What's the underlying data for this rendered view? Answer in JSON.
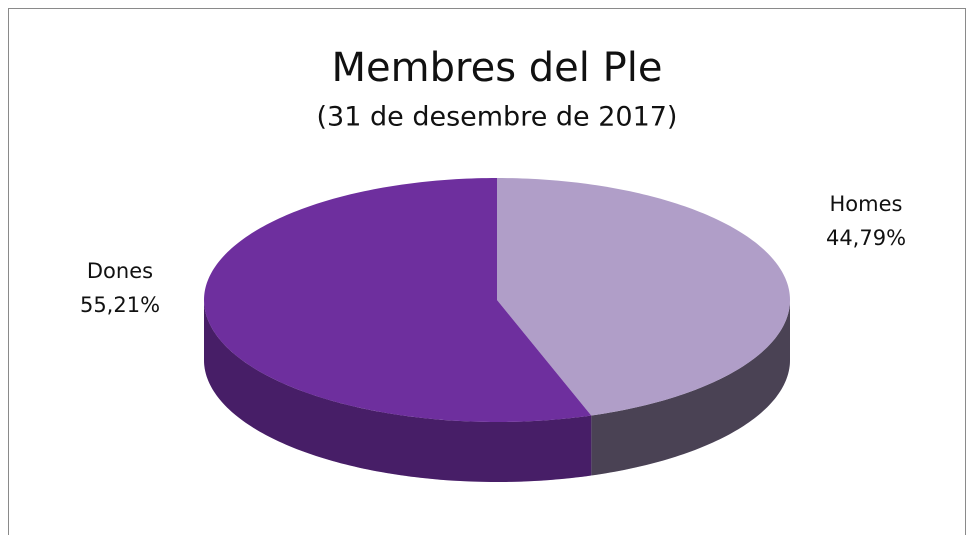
{
  "chart_data": {
    "type": "pie",
    "title": "Membres del Ple",
    "subtitle": "(31 de desembre de 2017)",
    "categories": [
      "Homes",
      "Dones"
    ],
    "values": [
      44.79,
      55.21
    ],
    "value_labels": [
      "44,79%",
      "55,21%"
    ],
    "colors": [
      "#b09ec8",
      "#6e2f9e"
    ]
  }
}
